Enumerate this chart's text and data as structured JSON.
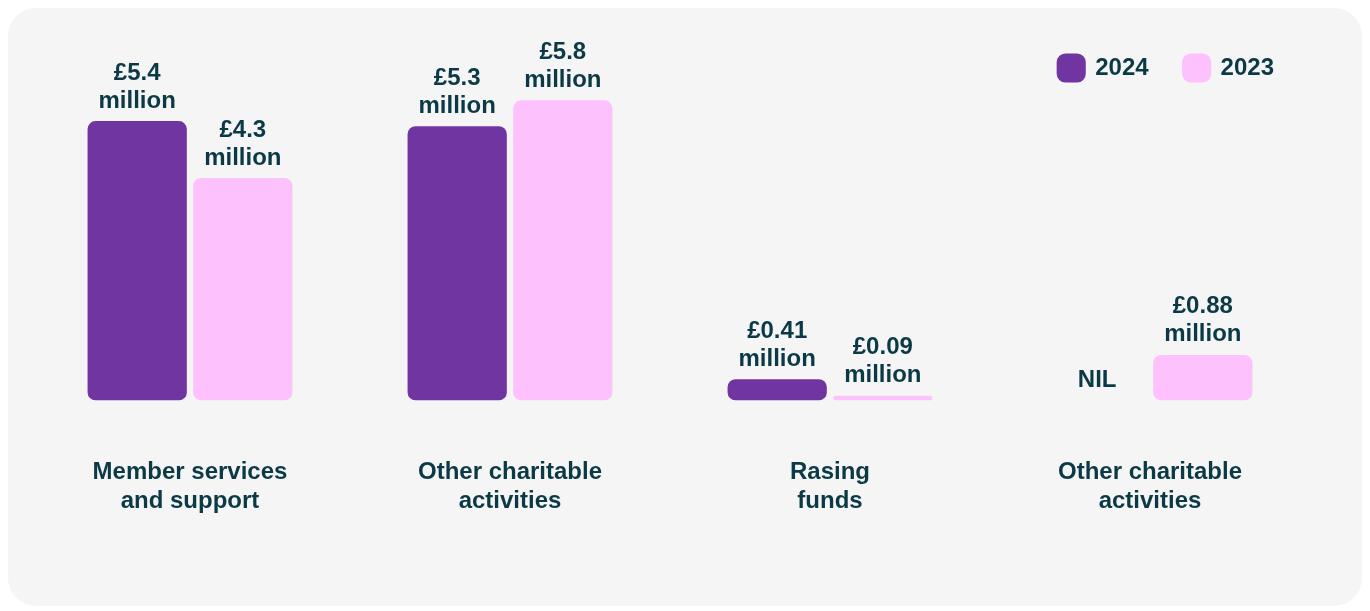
{
  "chart_data": {
    "type": "bar",
    "categories": [
      "Member services and support",
      "Other charitable activities",
      "Rasing funds",
      "Other charitable activities"
    ],
    "series": [
      {
        "name": "2024",
        "color": "#7035a0",
        "values": [
          5.4,
          5.3,
          0.41,
          null
        ],
        "value_labels": [
          "£5.4 million",
          "£5.3 million",
          "£0.41 million",
          "NIL"
        ]
      },
      {
        "name": "2023",
        "color": "#fdc2fd",
        "values": [
          4.3,
          5.8,
          0.09,
          0.88
        ],
        "value_labels": [
          "£4.3 million",
          "£5.8 million",
          "£0.09 million",
          "£0.88 million"
        ]
      }
    ],
    "legend": "top right",
    "grid": false
  }
}
